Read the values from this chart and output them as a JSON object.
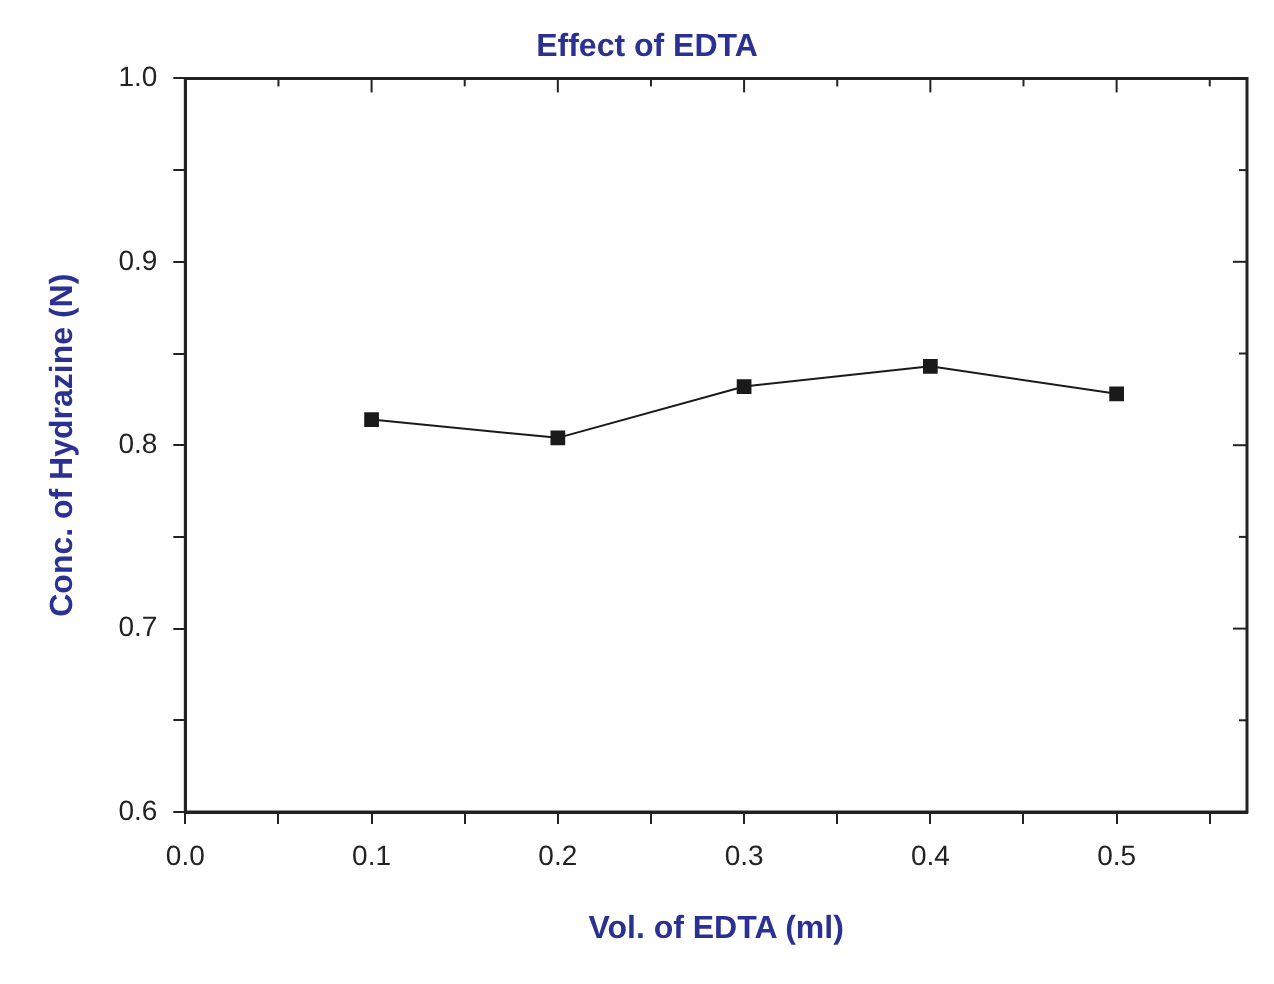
{
  "chart_data": {
    "type": "line",
    "title": "Effect of EDTA",
    "xlabel": "Vol. of EDTA (ml)",
    "ylabel": "Conc. of Hydrazine (N)",
    "x": [
      0.1,
      0.2,
      0.3,
      0.4,
      0.5
    ],
    "series": [
      {
        "color": "#1a1a1a",
        "values": [
          0.814,
          0.804,
          0.832,
          0.843,
          0.828
        ]
      }
    ],
    "xlim": [
      0,
      0.57
    ],
    "xticks": [
      {
        "value": 0,
        "label": "0.0"
      },
      {
        "value": 0.05,
        "label": null
      },
      0.1,
      {
        "value": 0.15,
        "label": null
      },
      0.2,
      {
        "value": 0.25,
        "label": null
      },
      0.3,
      {
        "value": 0.35,
        "label": null
      },
      0.4,
      {
        "value": 0.45,
        "label": null
      },
      0.5,
      {
        "value": 0.55,
        "label": null
      }
    ],
    "ylim": [
      0.6,
      1.0
    ],
    "yticks": [
      0.6,
      {
        "value": 0.65,
        "label": null
      },
      0.7,
      {
        "value": 0.75,
        "label": null
      },
      0.8,
      {
        "value": 0.85,
        "label": null
      },
      0.9,
      {
        "value": 0.95,
        "label": null
      },
      {
        "value": 1.0,
        "label": "1.0"
      }
    ],
    "grid": false,
    "legend": false,
    "marker": "square",
    "line_style": "solid"
  }
}
